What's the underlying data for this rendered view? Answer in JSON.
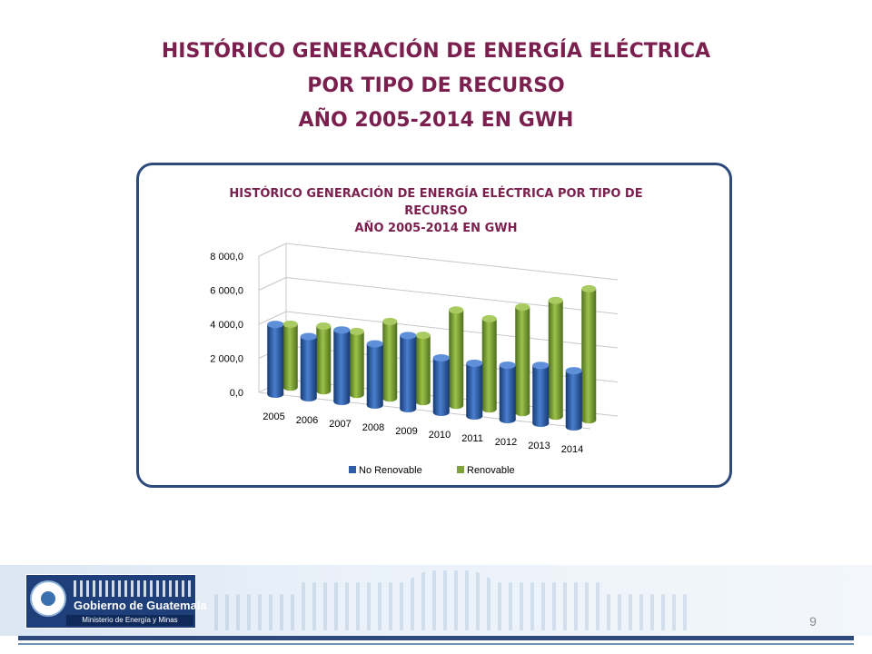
{
  "slide": {
    "title_lines": [
      "HISTÓRICO GENERACIÓN DE ENERGÍA ELÉCTRICA",
      "POR TIPO DE RECURSO",
      "AÑO 2005-2014 EN GWH"
    ],
    "page_number": "9"
  },
  "footer": {
    "logo_text": "Gobierno de Guatemala",
    "logo_subtext": "Ministerio de Energía y Minas"
  },
  "chart_data": {
    "type": "bar",
    "title_lines": [
      "HISTÓRICO GENERACIÓN DE ENERGÍA ELÉCTRICA POR TIPO DE",
      "RECURSO",
      "AÑO 2005-2014 EN GWH"
    ],
    "categories": [
      "2005",
      "2006",
      "2007",
      "2008",
      "2009",
      "2010",
      "2011",
      "2012",
      "2013",
      "2014"
    ],
    "series": [
      {
        "name": "No Renovable",
        "values": [
          4100,
          3600,
          4200,
          3600,
          4300,
          3200,
          3100,
          3200,
          3400,
          3300
        ],
        "color": "#2e5ea8"
      },
      {
        "name": "Renovable",
        "values": [
          3700,
          3800,
          3700,
          4500,
          3900,
          5600,
          5300,
          6200,
          6800,
          7700
        ],
        "color": "#7fa33a"
      }
    ],
    "ylim": [
      0,
      8000
    ],
    "y_ticks": [
      "0,0",
      "2 000,0",
      "4 000,0",
      "6 000,0",
      "8 000,0"
    ],
    "grid": true,
    "legend_position": "bottom",
    "style": "3d-cylinder"
  }
}
